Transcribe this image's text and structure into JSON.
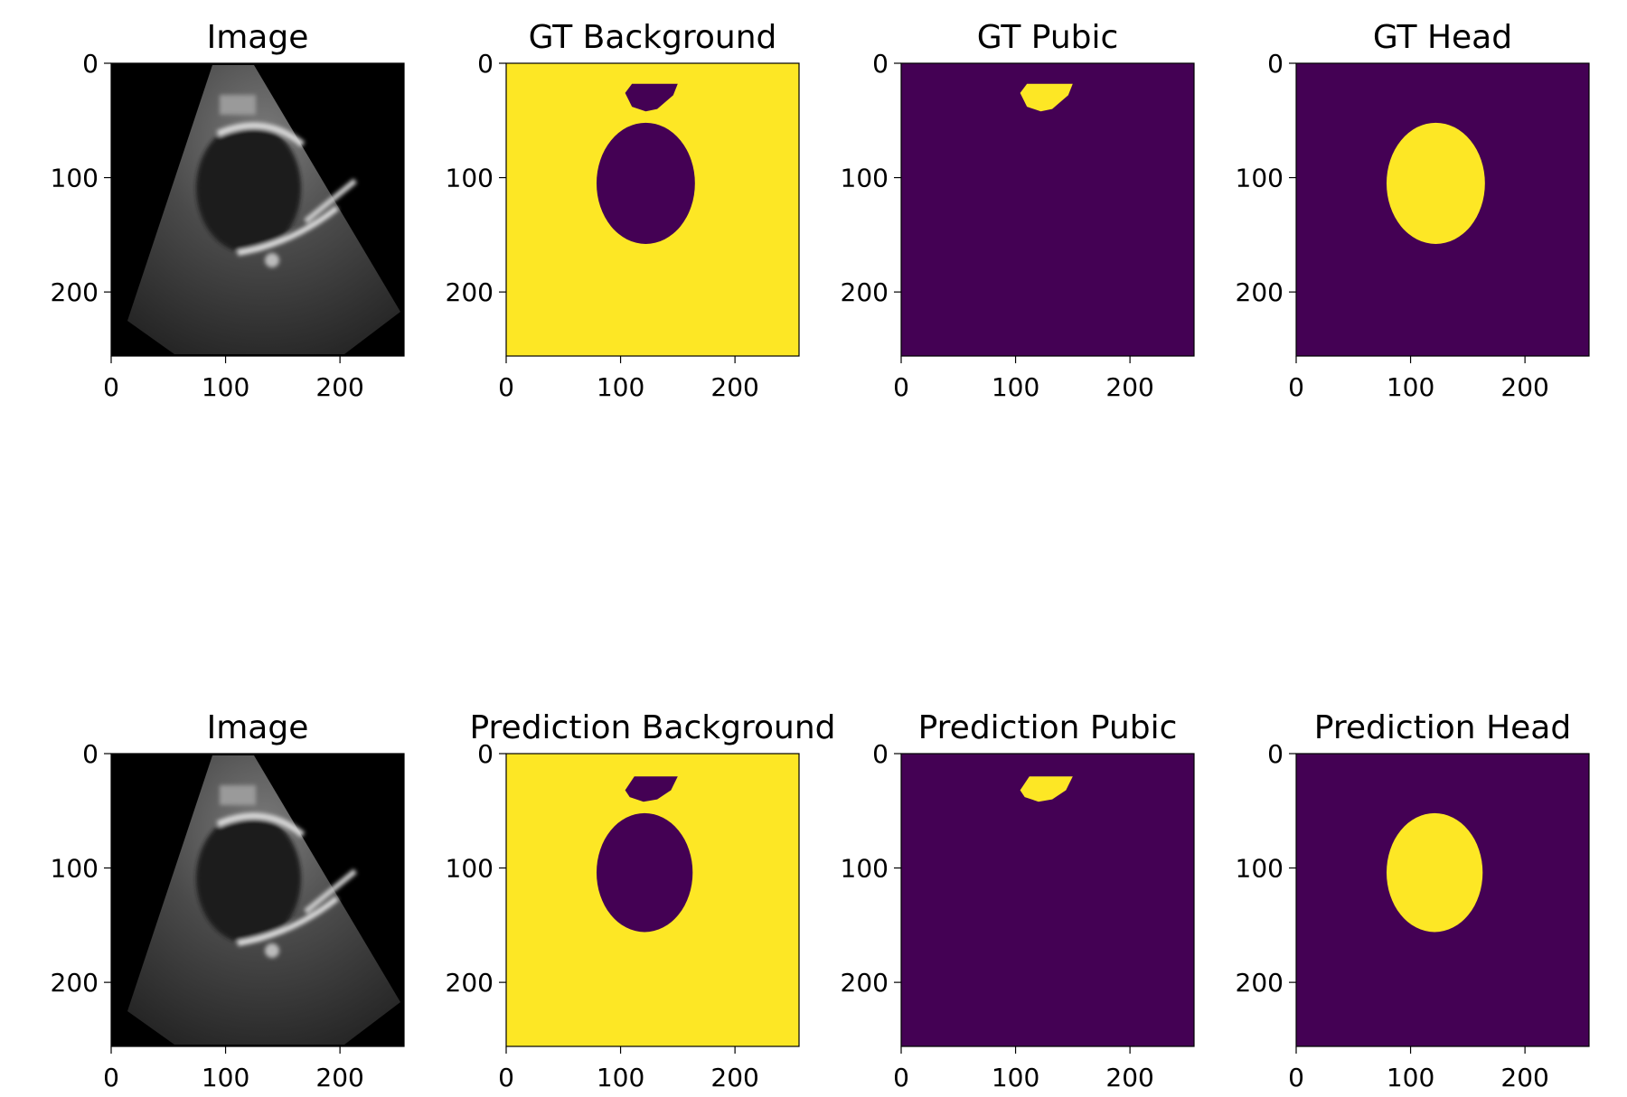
{
  "colors": {
    "mask_on": "#fde725",
    "mask_off": "#440154",
    "image_bg": "#000000",
    "axis": "#000000"
  },
  "chart_data": [
    {
      "type": "heatmap",
      "row": 0,
      "col": 0,
      "title": "Image",
      "kind": "image",
      "xlim": [
        0,
        256
      ],
      "ylim": [
        256,
        0
      ],
      "xticks": [
        "0",
        "100",
        "200"
      ],
      "yticks": [
        "0",
        "100",
        "200"
      ]
    },
    {
      "type": "heatmap",
      "row": 0,
      "col": 1,
      "title": "GT Background",
      "kind": "background",
      "variant": "gt",
      "xlim": [
        0,
        256
      ],
      "ylim": [
        256,
        0
      ],
      "xticks": [
        "0",
        "100",
        "200"
      ],
      "yticks": [
        "0",
        "100",
        "200"
      ]
    },
    {
      "type": "heatmap",
      "row": 0,
      "col": 2,
      "title": "GT Pubic",
      "kind": "pubic",
      "variant": "gt",
      "xlim": [
        0,
        256
      ],
      "ylim": [
        256,
        0
      ],
      "xticks": [
        "0",
        "100",
        "200"
      ],
      "yticks": [
        "0",
        "100",
        "200"
      ]
    },
    {
      "type": "heatmap",
      "row": 0,
      "col": 3,
      "title": "GT Head",
      "kind": "head",
      "variant": "gt",
      "xlim": [
        0,
        256
      ],
      "ylim": [
        256,
        0
      ],
      "xticks": [
        "0",
        "100",
        "200"
      ],
      "yticks": [
        "0",
        "100",
        "200"
      ]
    },
    {
      "type": "heatmap",
      "row": 1,
      "col": 0,
      "title": "Image",
      "kind": "image",
      "xlim": [
        0,
        256
      ],
      "ylim": [
        256,
        0
      ],
      "xticks": [
        "0",
        "100",
        "200"
      ],
      "yticks": [
        "0",
        "100",
        "200"
      ]
    },
    {
      "type": "heatmap",
      "row": 1,
      "col": 1,
      "title": "Prediction Background",
      "kind": "background",
      "variant": "pred",
      "xlim": [
        0,
        256
      ],
      "ylim": [
        256,
        0
      ],
      "xticks": [
        "0",
        "100",
        "200"
      ],
      "yticks": [
        "0",
        "100",
        "200"
      ]
    },
    {
      "type": "heatmap",
      "row": 1,
      "col": 2,
      "title": "Prediction Pubic",
      "kind": "pubic",
      "variant": "pred",
      "xlim": [
        0,
        256
      ],
      "ylim": [
        256,
        0
      ],
      "xticks": [
        "0",
        "100",
        "200"
      ],
      "yticks": [
        "0",
        "100",
        "200"
      ]
    },
    {
      "type": "heatmap",
      "row": 1,
      "col": 3,
      "title": "Prediction Head",
      "kind": "head",
      "variant": "pred",
      "xlim": [
        0,
        256
      ],
      "ylim": [
        256,
        0
      ],
      "xticks": [
        "0",
        "100",
        "200"
      ],
      "yticks": [
        "0",
        "100",
        "200"
      ]
    }
  ]
}
